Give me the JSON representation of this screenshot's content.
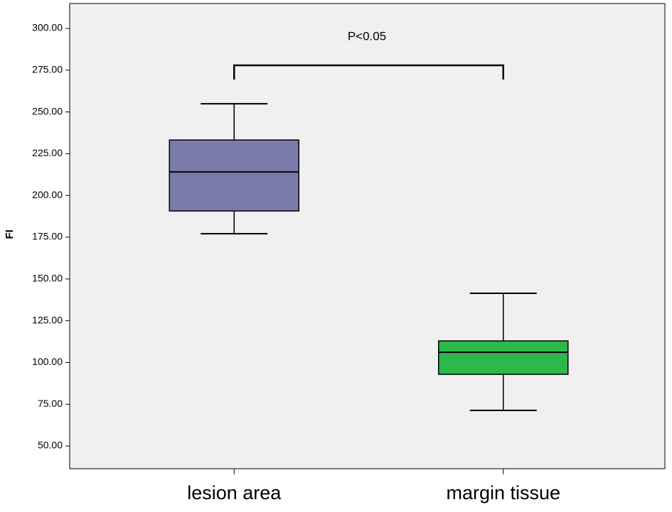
{
  "chart_data": {
    "type": "box",
    "annotation": "P<0.05",
    "y_label": "FI",
    "categories": [
      "lesion area",
      "margin tissue"
    ],
    "colors": [
      "#7b7bab",
      "#2db84b"
    ],
    "stats": [
      {
        "min": 177.1,
        "q1": 190.7,
        "median": 214.1,
        "q3": 233.2,
        "max": 254.9
      },
      {
        "min": 71.3,
        "q1": 92.9,
        "median": 106.1,
        "q3": 112.9,
        "max": 141.4
      }
    ],
    "ylim": [
      36.4,
      314.9
    ],
    "yticks": [
      {
        "value": 50,
        "label": "50.00"
      },
      {
        "value": 75,
        "label": "75.00"
      },
      {
        "value": 100,
        "label": "100.00"
      },
      {
        "value": 125,
        "label": "125.00"
      },
      {
        "value": 150,
        "label": "150.00"
      },
      {
        "value": 175,
        "label": "175.00"
      },
      {
        "value": 200,
        "label": "200.00"
      },
      {
        "value": 225,
        "label": "225.00"
      },
      {
        "value": 250,
        "label": "250.00"
      },
      {
        "value": 275,
        "label": "275.00"
      },
      {
        "value": 300,
        "label": "300.00"
      }
    ]
  }
}
